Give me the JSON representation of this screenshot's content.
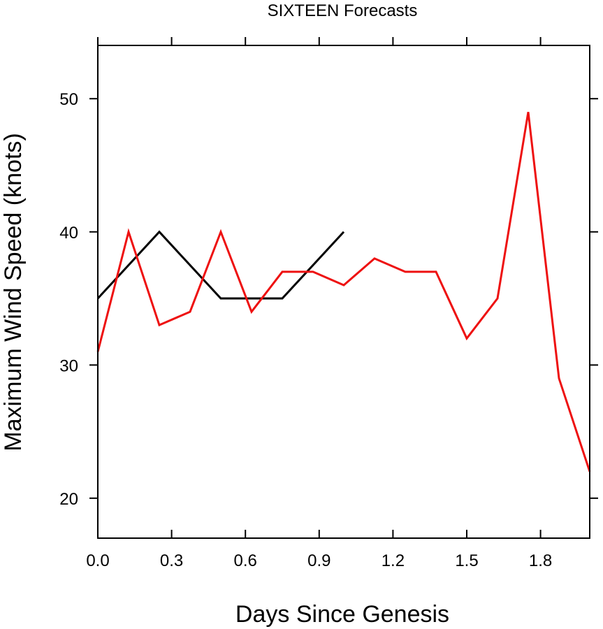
{
  "chart_data": {
    "type": "line",
    "title": "SIXTEEN Forecasts",
    "xlabel": "Days Since Genesis",
    "ylabel": "Maximum Wind Speed (knots)",
    "xlim": [
      0,
      2.0
    ],
    "ylim": [
      17,
      54
    ],
    "xticks": [
      "0.0",
      "0.3",
      "0.6",
      "0.9",
      "1.2",
      "1.5",
      "1.8"
    ],
    "yticks": [
      "20",
      "30",
      "40",
      "50"
    ],
    "grid": false,
    "series": [
      {
        "color": "#000000",
        "x": [
          0,
          0.25,
          0.5,
          0.75,
          1.0
        ],
        "y": [
          35,
          40,
          35,
          35,
          40
        ]
      },
      {
        "color": "#ee1111",
        "x": [
          0,
          0.125,
          0.25,
          0.375,
          0.5,
          0.625,
          0.75,
          0.875,
          1.0,
          1.125,
          1.25,
          1.375,
          1.5,
          1.625,
          1.75,
          1.875,
          2.0
        ],
        "y": [
          31,
          40,
          33,
          34,
          40,
          34,
          37,
          37,
          36,
          38,
          37,
          37,
          32,
          35,
          49,
          29,
          22
        ]
      }
    ]
  }
}
